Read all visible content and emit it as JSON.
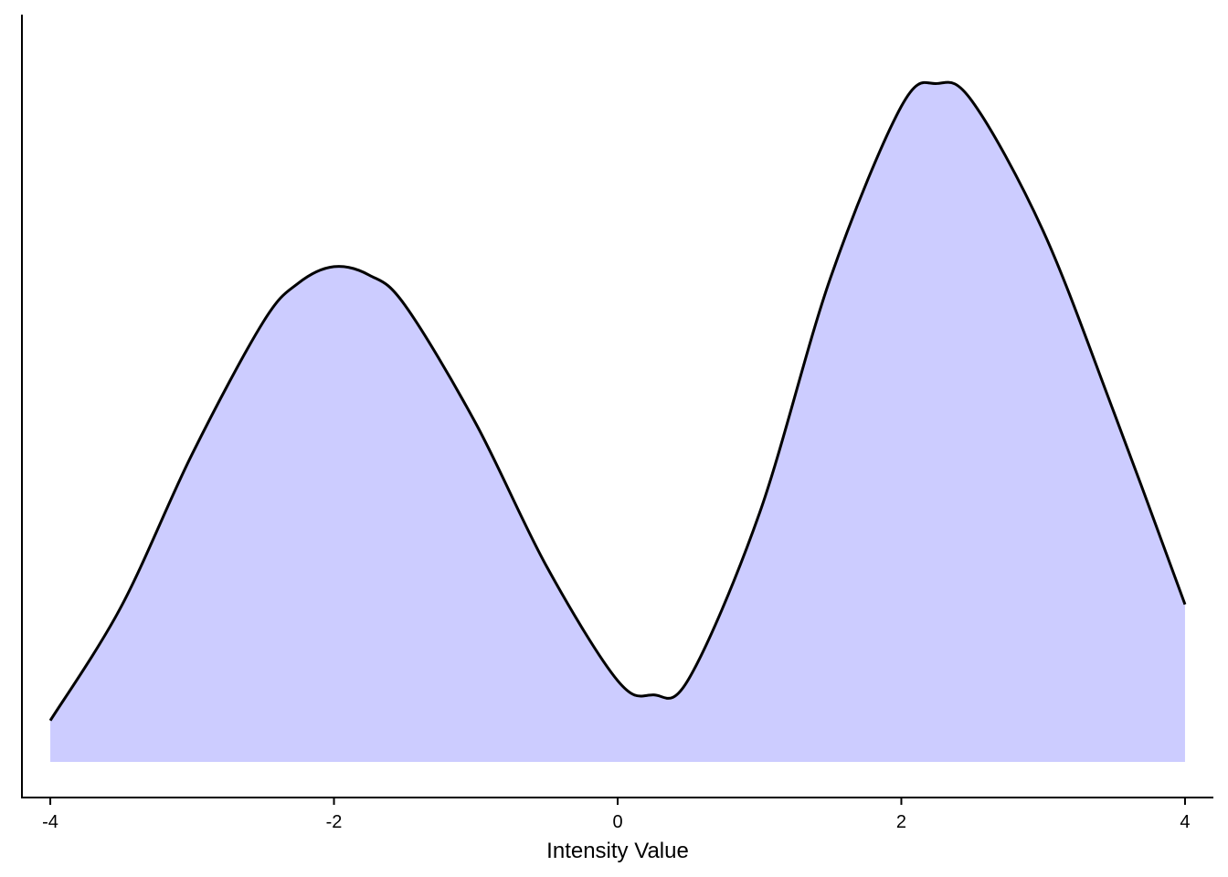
{
  "chart_data": {
    "type": "area",
    "xlabel": "Intensity Value",
    "ylabel": "",
    "xlim": [
      -4.2,
      4.2
    ],
    "ylim": [
      0,
      1.0
    ],
    "grid": false,
    "legend": "none",
    "fill_color": "#ccccff",
    "line_color": "#000000",
    "x_ticks": [
      {
        "value": -4,
        "label": "-4"
      },
      {
        "value": -2,
        "label": "-2"
      },
      {
        "value": 0,
        "label": "0"
      },
      {
        "value": 2,
        "label": "2"
      },
      {
        "value": 4,
        "label": "4"
      }
    ],
    "x": [
      -4.0,
      -3.5,
      -3.0,
      -2.5,
      -2.25,
      -2.0,
      -1.75,
      -1.5,
      -1.0,
      -0.5,
      0.0,
      0.25,
      0.5,
      1.0,
      1.5,
      2.0,
      2.25,
      2.5,
      3.0,
      3.5,
      4.0
    ],
    "y": [
      0.058,
      0.218,
      0.432,
      0.617,
      0.672,
      0.695,
      0.683,
      0.641,
      0.475,
      0.274,
      0.114,
      0.094,
      0.116,
      0.349,
      0.679,
      0.92,
      0.952,
      0.927,
      0.745,
      0.49,
      0.221
    ]
  }
}
